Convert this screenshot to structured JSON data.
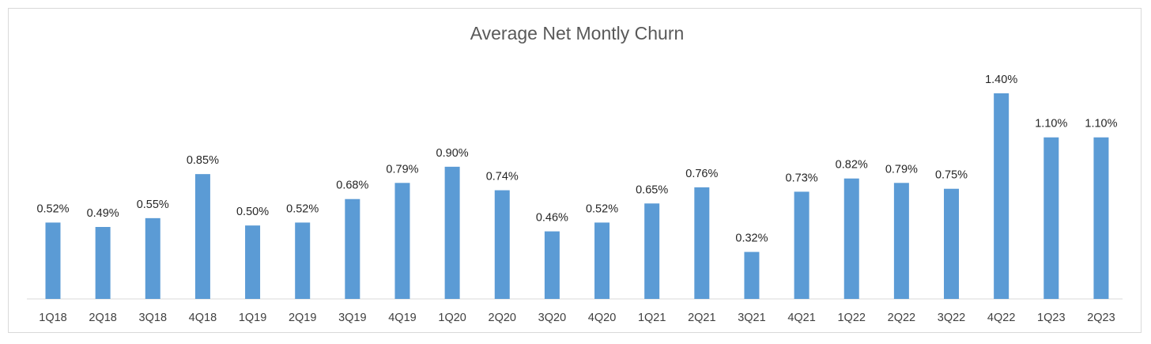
{
  "chart_data": {
    "type": "bar",
    "title": "Average Net Montly Churn",
    "xlabel": "",
    "ylabel": "",
    "categories": [
      "1Q18",
      "2Q18",
      "3Q18",
      "4Q18",
      "1Q19",
      "2Q19",
      "3Q19",
      "4Q19",
      "1Q20",
      "2Q20",
      "3Q20",
      "4Q20",
      "1Q21",
      "2Q21",
      "3Q21",
      "4Q21",
      "1Q22",
      "2Q22",
      "3Q22",
      "4Q22",
      "1Q23",
      "2Q23"
    ],
    "values": [
      0.52,
      0.49,
      0.55,
      0.85,
      0.5,
      0.52,
      0.68,
      0.79,
      0.9,
      0.74,
      0.46,
      0.52,
      0.65,
      0.76,
      0.32,
      0.73,
      0.82,
      0.79,
      0.75,
      1.4,
      1.1,
      1.1
    ],
    "data_labels": [
      "0.52%",
      "0.49%",
      "0.55%",
      "0.85%",
      "0.50%",
      "0.52%",
      "0.68%",
      "0.79%",
      "0.90%",
      "0.74%",
      "0.46%",
      "0.52%",
      "0.65%",
      "0.76%",
      "0.32%",
      "0.73%",
      "0.82%",
      "0.79%",
      "0.75%",
      "1.40%",
      "1.10%",
      "1.10%"
    ],
    "ylim": [
      0,
      1.4
    ],
    "grid": false,
    "legend": "none",
    "bar_color": "#5b9bd5"
  }
}
